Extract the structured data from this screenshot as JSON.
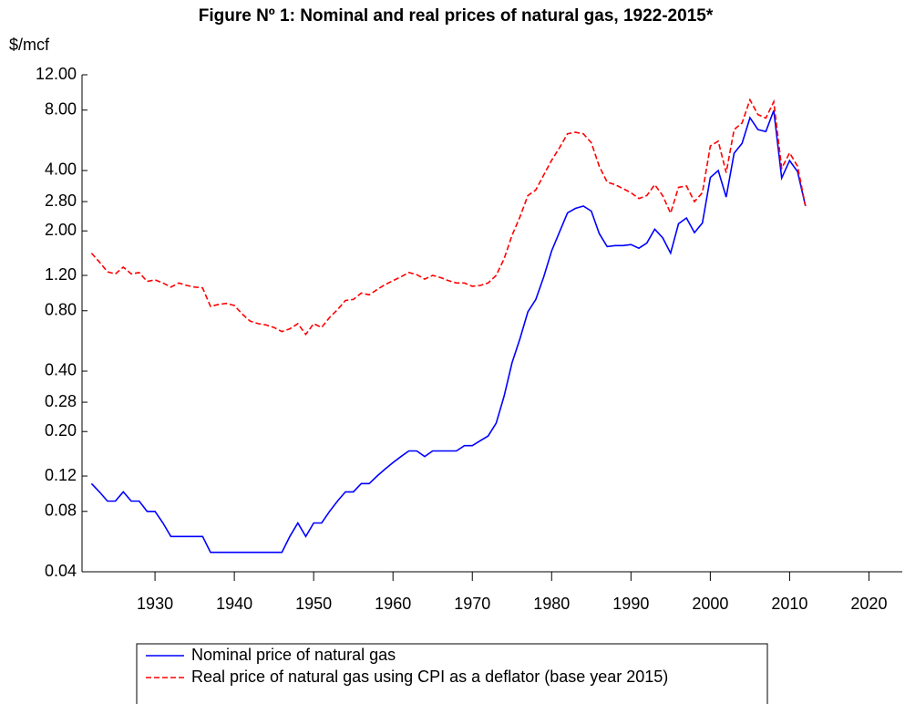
{
  "chart_data": {
    "type": "line",
    "title": "Figure Nº 1: Nominal and real prices of natural gas, 1922-2015*",
    "y_label": "$/mcf",
    "log_y": true,
    "grid": false,
    "legend": "bottom",
    "x": [
      1922,
      1923,
      1924,
      1925,
      1926,
      1927,
      1928,
      1929,
      1930,
      1931,
      1932,
      1933,
      1934,
      1935,
      1936,
      1937,
      1938,
      1939,
      1940,
      1941,
      1942,
      1943,
      1944,
      1945,
      1946,
      1947,
      1948,
      1949,
      1950,
      1951,
      1952,
      1953,
      1954,
      1955,
      1956,
      1957,
      1958,
      1959,
      1960,
      1961,
      1962,
      1963,
      1964,
      1965,
      1966,
      1967,
      1968,
      1969,
      1970,
      1971,
      1972,
      1973,
      1974,
      1975,
      1976,
      1977,
      1978,
      1979,
      1980,
      1981,
      1982,
      1983,
      1984,
      1985,
      1986,
      1987,
      1988,
      1989,
      1990,
      1991,
      1992,
      1993,
      1994,
      1995,
      1996,
      1997,
      1998,
      1999,
      2000,
      2001,
      2002,
      2003,
      2004,
      2005,
      2006,
      2007,
      2008,
      2009,
      2010,
      2011,
      2012
    ],
    "xlim": [
      1920.8,
      2024.2
    ],
    "xticks": [
      1930,
      1940,
      1950,
      1960,
      1970,
      1980,
      1990,
      2000,
      2010,
      2020
    ],
    "ylim": [
      0.04,
      12
    ],
    "yticks": [
      {
        "value": 0.04,
        "label": "0.04"
      },
      {
        "value": 0.08,
        "label": "0.08"
      },
      {
        "value": 0.12,
        "label": "0.12"
      },
      {
        "value": 0.2,
        "label": "0.20"
      },
      {
        "value": 0.28,
        "label": "0.28"
      },
      {
        "value": 0.4,
        "label": "0.40"
      },
      {
        "value": 0.8,
        "label": "0.80"
      },
      {
        "value": 1.2,
        "label": "1.20"
      },
      {
        "value": 2,
        "label": "2.00"
      },
      {
        "value": 2.8,
        "label": "2.80"
      },
      {
        "value": 4,
        "label": "4.00"
      },
      {
        "value": 8,
        "label": "8.00"
      },
      {
        "value": 12,
        "label": "12.00"
      }
    ],
    "series": [
      {
        "name": "Nominal price of natural gas",
        "color": "#0000ff",
        "dash": false,
        "values": [
          0.11,
          0.1,
          0.09,
          0.09,
          0.1,
          0.09,
          0.09,
          0.08,
          0.08,
          0.07,
          0.06,
          0.06,
          0.06,
          0.06,
          0.06,
          0.05,
          0.05,
          0.05,
          0.05,
          0.05,
          0.05,
          0.05,
          0.05,
          0.05,
          0.05,
          0.06,
          0.07,
          0.06,
          0.07,
          0.07,
          0.08,
          0.09,
          0.1,
          0.1,
          0.11,
          0.11,
          0.12,
          0.13,
          0.14,
          0.15,
          0.16,
          0.16,
          0.15,
          0.16,
          0.16,
          0.16,
          0.16,
          0.17,
          0.17,
          0.18,
          0.19,
          0.22,
          0.3,
          0.44,
          0.58,
          0.79,
          0.91,
          1.18,
          1.59,
          1.98,
          2.46,
          2.59,
          2.66,
          2.51,
          1.94,
          1.67,
          1.69,
          1.69,
          1.71,
          1.64,
          1.74,
          2.04,
          1.85,
          1.55,
          2.17,
          2.32,
          1.96,
          2.19,
          3.69,
          4.0,
          2.95,
          4.88,
          5.46,
          7.33,
          6.4,
          6.25,
          7.97,
          3.67,
          4.48,
          3.95,
          2.66
        ]
      },
      {
        "name": "Real price of natural gas using CPI as a deflator (base year 2015)",
        "color": "#ff0000",
        "dash": true,
        "values": [
          1.55,
          1.4,
          1.25,
          1.22,
          1.32,
          1.22,
          1.24,
          1.12,
          1.14,
          1.1,
          1.05,
          1.1,
          1.07,
          1.05,
          1.04,
          0.84,
          0.86,
          0.87,
          0.85,
          0.77,
          0.71,
          0.69,
          0.68,
          0.66,
          0.63,
          0.65,
          0.69,
          0.61,
          0.69,
          0.66,
          0.74,
          0.81,
          0.9,
          0.91,
          0.98,
          0.96,
          1.02,
          1.08,
          1.13,
          1.18,
          1.24,
          1.21,
          1.15,
          1.2,
          1.17,
          1.13,
          1.1,
          1.1,
          1.06,
          1.07,
          1.1,
          1.2,
          1.45,
          1.9,
          2.35,
          3.0,
          3.2,
          3.8,
          4.5,
          5.2,
          6.1,
          6.2,
          6.1,
          5.5,
          4.2,
          3.5,
          3.4,
          3.25,
          3.1,
          2.9,
          3.0,
          3.4,
          3.0,
          2.45,
          3.3,
          3.35,
          2.8,
          3.1,
          5.3,
          5.6,
          3.9,
          6.4,
          6.9,
          9.0,
          7.6,
          7.3,
          8.8,
          4.1,
          4.9,
          4.2,
          2.66
        ]
      }
    ]
  }
}
